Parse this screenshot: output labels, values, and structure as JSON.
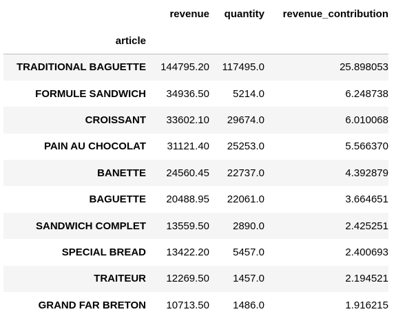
{
  "table": {
    "index_name": "article",
    "columns": [
      "revenue",
      "quantity",
      "revenue_contribution"
    ],
    "rows": [
      {
        "article": "TRADITIONAL BAGUETTE",
        "revenue": "144795.20",
        "quantity": "117495.0",
        "revenue_contribution": "25.898053"
      },
      {
        "article": "FORMULE SANDWICH",
        "revenue": "34936.50",
        "quantity": "5214.0",
        "revenue_contribution": "6.248738"
      },
      {
        "article": "CROISSANT",
        "revenue": "33602.10",
        "quantity": "29674.0",
        "revenue_contribution": "6.010068"
      },
      {
        "article": "PAIN AU CHOCOLAT",
        "revenue": "31121.40",
        "quantity": "25253.0",
        "revenue_contribution": "5.566370"
      },
      {
        "article": "BANETTE",
        "revenue": "24560.45",
        "quantity": "22737.0",
        "revenue_contribution": "4.392879"
      },
      {
        "article": "BAGUETTE",
        "revenue": "20488.95",
        "quantity": "22061.0",
        "revenue_contribution": "3.664651"
      },
      {
        "article": "SANDWICH COMPLET",
        "revenue": "13559.50",
        "quantity": "2890.0",
        "revenue_contribution": "2.425251"
      },
      {
        "article": "SPECIAL BREAD",
        "revenue": "13422.20",
        "quantity": "5457.0",
        "revenue_contribution": "2.400693"
      },
      {
        "article": "TRAITEUR",
        "revenue": "12269.50",
        "quantity": "1457.0",
        "revenue_contribution": "2.194521"
      },
      {
        "article": "GRAND FAR BRETON",
        "revenue": "10713.50",
        "quantity": "1486.0",
        "revenue_contribution": "1.916215"
      }
    ]
  },
  "colors": {
    "stripe": "#f5f5f5",
    "header_rule": "#bdbdbd",
    "text": "#000000"
  }
}
